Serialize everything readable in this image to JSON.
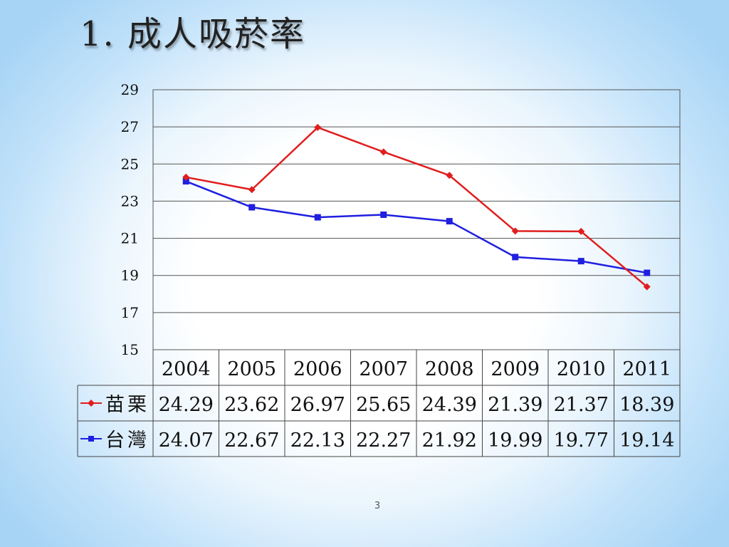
{
  "slide": {
    "title": "1. 成人吸菸率",
    "page_number": "3"
  },
  "chart_data": {
    "type": "line",
    "categories": [
      "2004",
      "2005",
      "2006",
      "2007",
      "2008",
      "2009",
      "2010",
      "2011"
    ],
    "series": [
      {
        "name": "苗栗",
        "color": "#e01e1e",
        "marker": "diamond",
        "values": [
          24.29,
          23.62,
          26.97,
          25.65,
          24.39,
          21.39,
          21.37,
          18.39
        ],
        "labels": [
          "24.29",
          "23.62",
          "26.97",
          "25.65",
          "24.39",
          "21.39",
          "21.37",
          "18.39"
        ]
      },
      {
        "name": "台灣",
        "color": "#1f1fe0",
        "marker": "square",
        "values": [
          24.07,
          22.67,
          22.13,
          22.27,
          21.92,
          19.99,
          19.77,
          19.14
        ],
        "labels": [
          "24.07",
          "22.67",
          "22.13",
          "22.27",
          "21.92",
          "19.99",
          "19.77",
          "19.14"
        ]
      }
    ],
    "ylim": [
      15,
      29
    ],
    "yticks": [
      "15",
      "17",
      "19",
      "21",
      "23",
      "25",
      "27",
      "29"
    ],
    "ytick_values": [
      15,
      17,
      19,
      21,
      23,
      25,
      27,
      29
    ],
    "grid": true,
    "legend": "data-table"
  }
}
